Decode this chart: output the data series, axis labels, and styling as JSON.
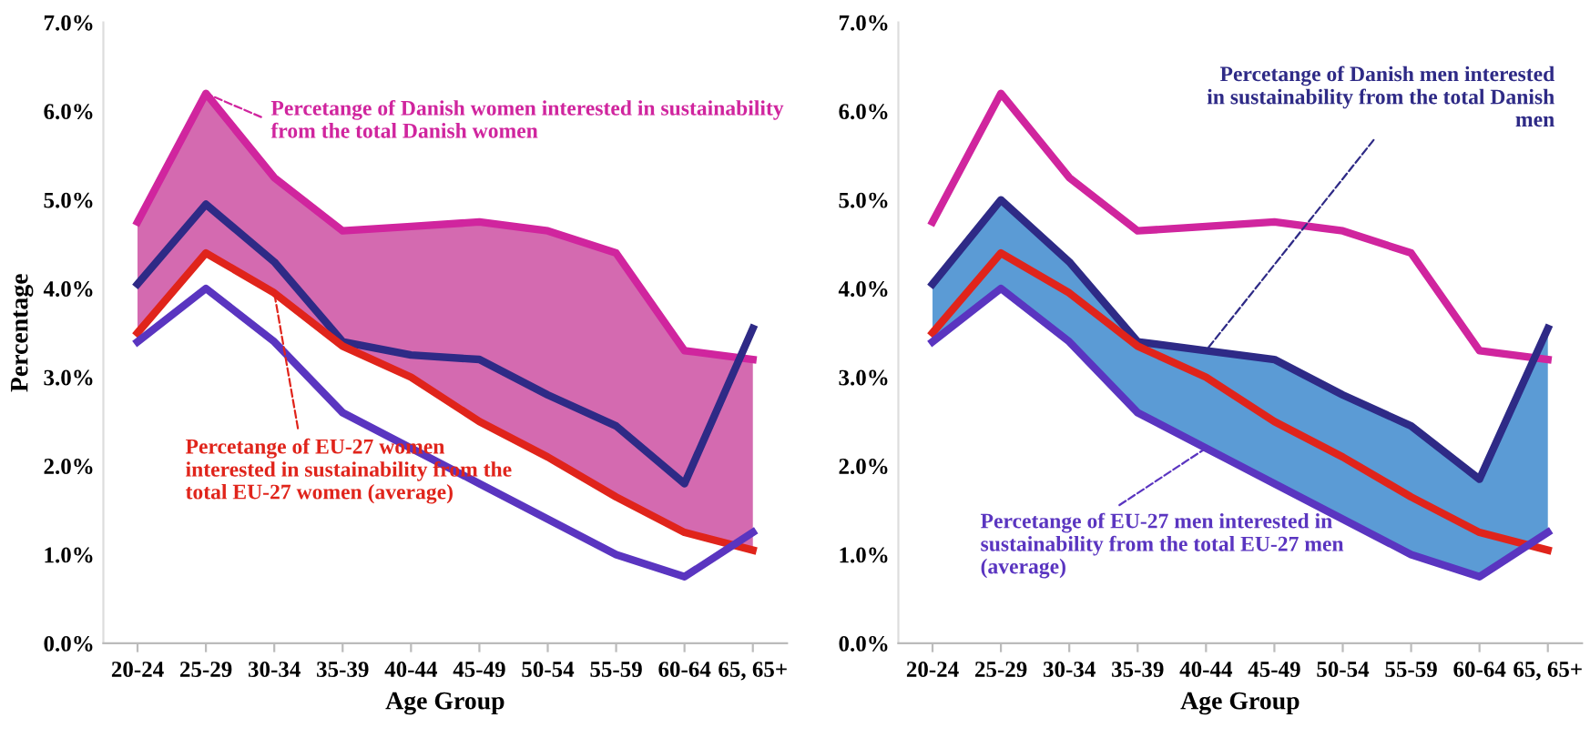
{
  "chart_data": [
    {
      "type": "line",
      "xlabel": "Age Group",
      "ylabel": "Percentage",
      "categories": [
        "20-24",
        "25-29",
        "30-34",
        "35-39",
        "40-44",
        "45-49",
        "50-54",
        "55-59",
        "60-64",
        "65, 65+"
      ],
      "ylim": [
        0,
        7
      ],
      "yticks": [
        {
          "value": 0,
          "label": "0.0%"
        },
        {
          "value": 1,
          "label": "1.0%"
        },
        {
          "value": 2,
          "label": "2.0%"
        },
        {
          "value": 3,
          "label": "3.0%"
        },
        {
          "value": 4,
          "label": "4.0%"
        },
        {
          "value": 5,
          "label": "5.0%"
        },
        {
          "value": 6,
          "label": "6.0%"
        },
        {
          "value": 7,
          "label": "7.0%"
        }
      ],
      "grid": false,
      "legend": false,
      "series": [
        {
          "color": "#d0259e",
          "values": [
            4.75,
            6.2,
            5.25,
            4.65,
            4.7,
            4.75,
            4.65,
            4.4,
            3.3,
            3.2
          ],
          "lower": [
            3.5,
            4.4,
            3.95,
            3.35,
            3.0,
            2.5,
            2.1,
            1.65,
            1.25,
            1.05
          ],
          "upper": [
            4.75,
            6.2,
            5.25,
            4.65,
            4.7,
            4.75,
            4.65,
            4.4,
            3.3,
            3.2
          ]
        },
        {
          "color": "#2e2a86",
          "values": [
            4.05,
            4.95,
            4.3,
            3.4,
            3.25,
            3.2,
            2.8,
            2.45,
            1.8,
            3.55
          ]
        },
        {
          "color": "#e0241b",
          "values": [
            3.5,
            4.4,
            3.95,
            3.35,
            3.0,
            2.5,
            2.1,
            1.65,
            1.25,
            1.05
          ]
        },
        {
          "color": "#5a35c0",
          "values": [
            3.4,
            4.0,
            3.4,
            2.6,
            2.2,
            1.8,
            1.4,
            1.0,
            0.75,
            1.25
          ]
        }
      ],
      "annotations": [
        {
          "text": "Percetange of Danish women interested in sustainability\nfrom the total Danish women",
          "x": "25-29",
          "y": 6.2
        },
        {
          "text": "Percetange of EU-27 women\ninterested in sustainability from the\ntotal EU-27 women (average)",
          "x": "30-34",
          "y": 3.95
        }
      ]
    },
    {
      "type": "line",
      "xlabel": "Age Group",
      "categories": [
        "20-24",
        "25-29",
        "30-34",
        "35-39",
        "40-44",
        "45-49",
        "50-54",
        "55-59",
        "60-64",
        "65, 65+"
      ],
      "ylim": [
        0,
        7
      ],
      "yticks": [
        {
          "value": 0,
          "label": "0.0%"
        },
        {
          "value": 1,
          "label": "1.0%"
        },
        {
          "value": 2,
          "label": "2.0%"
        },
        {
          "value": 3,
          "label": "3.0%"
        },
        {
          "value": 4,
          "label": "4.0%"
        },
        {
          "value": 5,
          "label": "5.0%"
        },
        {
          "value": 6,
          "label": "6.0%"
        },
        {
          "value": 7,
          "label": "7.0%"
        }
      ],
      "grid": false,
      "legend": false,
      "series": [
        {
          "color": "#d0259e",
          "values": [
            4.75,
            6.2,
            5.25,
            4.65,
            4.7,
            4.75,
            4.65,
            4.4,
            3.3,
            3.2
          ]
        },
        {
          "color": "#2e2a86",
          "values": [
            4.05,
            5.0,
            4.3,
            3.4,
            3.3,
            3.2,
            2.8,
            2.45,
            1.85,
            3.55
          ],
          "lower": [
            3.4,
            4.0,
            3.4,
            2.6,
            2.2,
            1.8,
            1.4,
            1.0,
            0.75,
            1.25
          ],
          "upper": [
            4.05,
            5.0,
            4.3,
            3.4,
            3.3,
            3.2,
            2.8,
            2.45,
            1.85,
            3.55
          ]
        },
        {
          "color": "#e0241b",
          "values": [
            3.5,
            4.4,
            3.95,
            3.35,
            3.0,
            2.5,
            2.1,
            1.65,
            1.25,
            1.05
          ]
        },
        {
          "color": "#5a35c0",
          "values": [
            3.4,
            4.0,
            3.4,
            2.6,
            2.2,
            1.8,
            1.4,
            1.0,
            0.75,
            1.25
          ]
        }
      ],
      "annotations": [
        {
          "text": "Percetange of Danish men interested\nin sustainability from the total Danish\nmen",
          "x": "40-44",
          "y": 3.3
        },
        {
          "text": "Percetange of EU-27 men interested in\nsustainability from the total EU-27 men\n(average)",
          "x": "40-44",
          "y": 2.2
        }
      ]
    }
  ]
}
